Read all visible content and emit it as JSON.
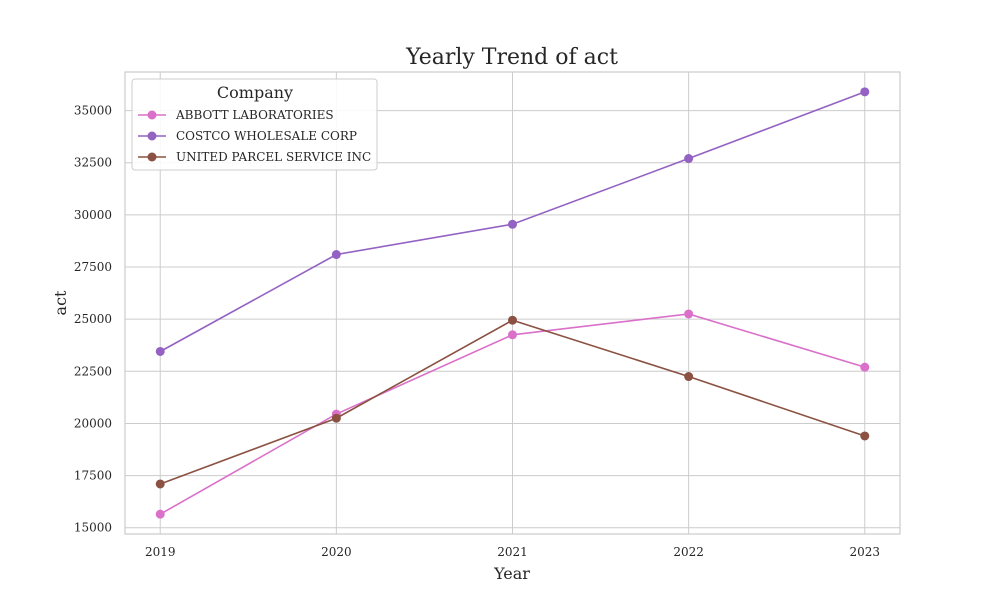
{
  "chart_data": {
    "type": "line",
    "title": "Yearly Trend of act",
    "xlabel": "Year",
    "ylabel": "act",
    "x": [
      2019,
      2020,
      2021,
      2022,
      2023
    ],
    "x_tick_labels": [
      "2019",
      "2020",
      "2021",
      "2022",
      "2023"
    ],
    "y_ticks": [
      15000,
      17500,
      20000,
      22500,
      25000,
      27500,
      30000,
      32500,
      35000
    ],
    "y_tick_labels": [
      "15000",
      "17500",
      "20000",
      "22500",
      "25000",
      "27500",
      "30000",
      "32500",
      "35000"
    ],
    "ylim": [
      14700,
      36850
    ],
    "grid": true,
    "legend": {
      "title": "Company",
      "placement": "top-left"
    },
    "series": [
      {
        "name": "ABBOTT LABORATORIES",
        "color": "#da70c9",
        "values": [
          15650,
          20450,
          24250,
          25250,
          22700
        ]
      },
      {
        "name": "COSTCO WHOLESALE CORP",
        "color": "#9362c2",
        "values": [
          23450,
          28100,
          29550,
          32700,
          35900
        ]
      },
      {
        "name": "UNITED PARCEL SERVICE INC",
        "color": "#8b5142",
        "values": [
          17100,
          20250,
          24950,
          22250,
          19400
        ]
      }
    ]
  }
}
